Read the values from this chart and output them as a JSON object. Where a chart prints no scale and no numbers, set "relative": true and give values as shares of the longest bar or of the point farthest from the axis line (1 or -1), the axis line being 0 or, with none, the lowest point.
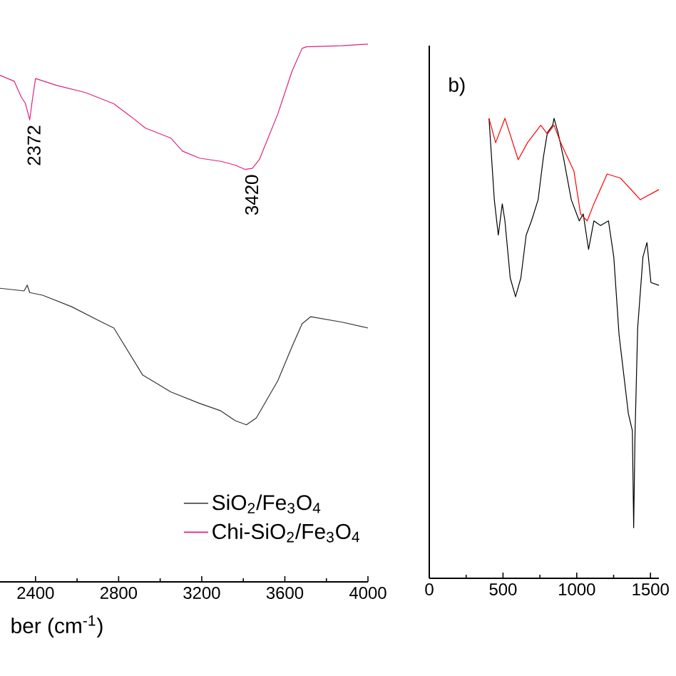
{
  "chart_data": [
    {
      "type": "line",
      "relative": true,
      "xlabel": "ber (cm$^{-1}$)",
      "xlim": [
        2229,
        4000
      ],
      "xticks": [
        2400,
        2800,
        3200,
        3600,
        4000
      ],
      "tick_labels": "x",
      "legend": "bottom right",
      "marker": "none",
      "annotations": [
        {
          "text": "2372",
          "x": 2372,
          "y": 0.859
        },
        {
          "text": "3420",
          "x": 3420,
          "y": 0.767
        }
      ],
      "series": [
        {
          "name": "SiO$_{2}$/Fe$_{3}$O$_{4}$",
          "color": "#333333",
          "x": [
            2229,
            2345,
            2360,
            2372,
            2434,
            2572,
            2709,
            2777,
            2915,
            3052,
            3189,
            3292,
            3360,
            3415,
            3463,
            3566,
            3635,
            3683,
            3724,
            3875,
            4000
          ],
          "values": [
            0.546,
            0.541,
            0.552,
            0.538,
            0.533,
            0.512,
            0.485,
            0.472,
            0.385,
            0.353,
            0.332,
            0.318,
            0.3,
            0.292,
            0.305,
            0.374,
            0.438,
            0.48,
            0.493,
            0.483,
            0.472
          ]
        },
        {
          "name": "Chi-SiO$_{2}$/Fe$_{3}$O$_{4}$",
          "color": "#e0207f",
          "x": [
            2229,
            2297,
            2331,
            2352,
            2372,
            2385,
            2400,
            2503,
            2640,
            2777,
            2860,
            2928,
            3052,
            3107,
            3189,
            3292,
            3360,
            3408,
            3443,
            3477,
            3566,
            3635,
            3683,
            3703,
            3875,
            4000
          ],
          "values": [
            0.942,
            0.931,
            0.902,
            0.889,
            0.859,
            0.897,
            0.936,
            0.923,
            0.91,
            0.889,
            0.865,
            0.844,
            0.825,
            0.801,
            0.788,
            0.782,
            0.775,
            0.767,
            0.769,
            0.785,
            0.87,
            0.95,
            0.992,
            0.995,
            0.997,
            1.0
          ]
        }
      ]
    },
    {
      "type": "line",
      "relative": true,
      "xlim": [
        0,
        1557
      ],
      "xticks": [
        0,
        500,
        1000,
        1500
      ],
      "tick_labels": "x",
      "marker": "none",
      "annotations": [
        "b)"
      ],
      "series": [
        {
          "color": "#000000",
          "x": [
            405,
            441,
            468,
            495,
            513,
            549,
            585,
            621,
            657,
            693,
            738,
            774,
            801,
            837,
            846,
            873,
            909,
            963,
            1017,
            1044,
            1080,
            1116,
            1161,
            1215,
            1251,
            1287,
            1350,
            1377,
            1386,
            1395,
            1413,
            1449,
            1476,
            1503,
            1557
          ],
          "values": [
            1.0,
            0.823,
            0.746,
            0.814,
            0.777,
            0.653,
            0.612,
            0.653,
            0.746,
            0.777,
            0.823,
            0.916,
            0.969,
            0.985,
            1.0,
            0.969,
            0.916,
            0.823,
            0.777,
            0.792,
            0.715,
            0.777,
            0.767,
            0.777,
            0.699,
            0.529,
            0.358,
            0.321,
            0.11,
            0.311,
            0.544,
            0.699,
            0.73,
            0.643,
            0.637
          ]
        },
        {
          "color": "#ff0000",
          "x": [
            405,
            450,
            513,
            603,
            666,
            756,
            801,
            846,
            891,
            981,
            1026,
            1071,
            1116,
            1206,
            1296,
            1386,
            1431,
            1557
          ],
          "values": [
            1.0,
            0.947,
            1.0,
            0.91,
            0.947,
            0.985,
            0.966,
            0.985,
            0.947,
            0.885,
            0.792,
            0.777,
            0.814,
            0.879,
            0.87,
            0.839,
            0.823,
            0.845
          ]
        }
      ]
    }
  ]
}
